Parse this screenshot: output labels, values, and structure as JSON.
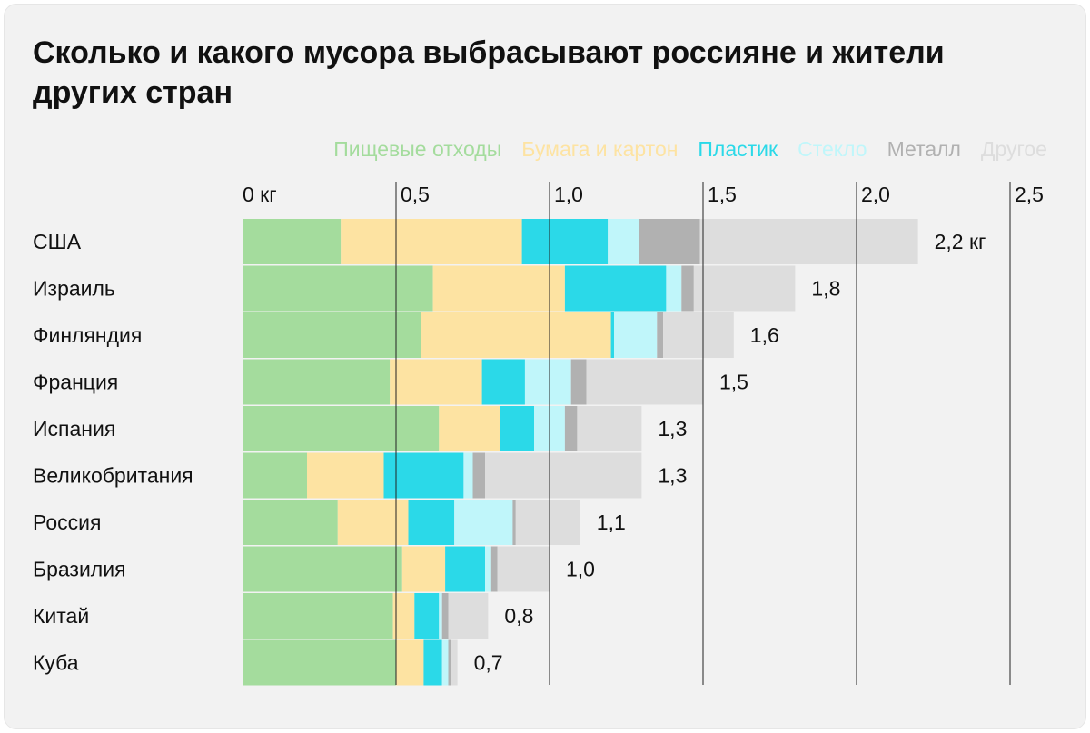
{
  "colors": {
    "food": "#a4dc9d",
    "paper": "#fde3a2",
    "plastic": "#2bd9e8",
    "glass": "#c0f6fa",
    "metal": "#b1b1b1",
    "other": "#dddddd",
    "grid": "#222222",
    "text": "#111111"
  },
  "chart_data": {
    "type": "bar",
    "orientation": "horizontal",
    "stacked": true,
    "title": "Сколько и какого мусора выбрасывают россияне и жители других стран",
    "xlabel": "",
    "ylabel": "",
    "xlim": [
      0,
      2.5
    ],
    "ticks": [
      {
        "value": 0,
        "label": "0 кг"
      },
      {
        "value": 0.5,
        "label": "0,5"
      },
      {
        "value": 1.0,
        "label": "1,0"
      },
      {
        "value": 1.5,
        "label": "1,5"
      },
      {
        "value": 2.0,
        "label": "2,0"
      },
      {
        "value": 2.5,
        "label": "2,5"
      }
    ],
    "grid": true,
    "legend_position": "top",
    "categories": [
      "США",
      "Израиль",
      "Финляндия",
      "Франция",
      "Испания",
      "Великобритания",
      "Россия",
      "Бразилия",
      "Китай",
      "Куба"
    ],
    "totals": [
      "2,2 кг",
      "1,8",
      "1,6",
      "1,5",
      "1,3",
      "1,3",
      "1,1",
      "1,0",
      "0,8",
      "0,7"
    ],
    "series": [
      {
        "name": "Пищевые отходы",
        "key": "food",
        "values": [
          0.32,
          0.62,
          0.58,
          0.48,
          0.64,
          0.21,
          0.31,
          0.52,
          0.49,
          0.5
        ]
      },
      {
        "name": "Бумага и картон",
        "key": "paper",
        "values": [
          0.59,
          0.43,
          0.62,
          0.3,
          0.2,
          0.25,
          0.23,
          0.14,
          0.07,
          0.09
        ]
      },
      {
        "name": "Пластик",
        "key": "plastic",
        "values": [
          0.28,
          0.33,
          0.01,
          0.14,
          0.11,
          0.26,
          0.15,
          0.13,
          0.08,
          0.06
        ]
      },
      {
        "name": "Стекло",
        "key": "glass",
        "values": [
          0.1,
          0.05,
          0.14,
          0.15,
          0.1,
          0.03,
          0.19,
          0.02,
          0.01,
          0.02
        ]
      },
      {
        "name": "Металл",
        "key": "metal",
        "values": [
          0.2,
          0.04,
          0.02,
          0.05,
          0.04,
          0.04,
          0.01,
          0.02,
          0.02,
          0.01
        ]
      },
      {
        "name": "Другое",
        "key": "other",
        "values": [
          0.71,
          0.33,
          0.23,
          0.38,
          0.21,
          0.51,
          0.21,
          0.17,
          0.13,
          0.02
        ]
      }
    ]
  }
}
